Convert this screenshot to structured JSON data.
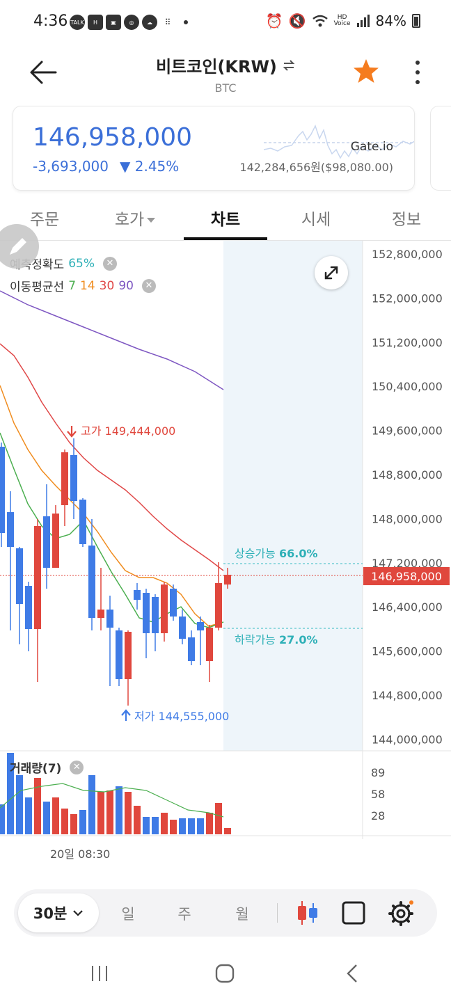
{
  "status_bar": {
    "time": "4:36",
    "battery": "84%",
    "left_icons": [
      "talk-icon",
      "h-icon",
      "gallery-icon",
      "circle-icon",
      "cloud-icon",
      "grid-icon"
    ],
    "right_icons": [
      "alarm-icon",
      "mute-icon",
      "wifi-icon",
      "hd-voice-icon",
      "signal-icon",
      "battery-icon"
    ]
  },
  "header": {
    "title": "비트코인(KRW)",
    "subtitle": "BTC"
  },
  "price_card": {
    "price": "146,958,000",
    "change": "-3,693,000",
    "change_pct": "▼ 2.45%",
    "exchange": "Gate.io",
    "exchange_price": "142,284,656원($98,080.00)"
  },
  "tabs": [
    {
      "label": "주문"
    },
    {
      "label": "호가"
    },
    {
      "label": "차트"
    },
    {
      "label": "시세"
    },
    {
      "label": "정보"
    }
  ],
  "chart": {
    "accuracy_label": "예측정확도",
    "accuracy_value": "65%",
    "ma_label": "이동평균선",
    "ma_periods": [
      "7",
      "14",
      "30",
      "90"
    ],
    "ma_colors": [
      "#4caf50",
      "#f08c1e",
      "#e04848",
      "#7e57c2"
    ],
    "y_ticks": [
      "152,800,000",
      "152,000,000",
      "151,200,000",
      "150,400,000",
      "149,600,000",
      "148,800,000",
      "148,000,000",
      "147,200,000",
      "146,400,000",
      "145,600,000",
      "144,800,000",
      "144,000,000"
    ],
    "current_price": "146,958,000",
    "high_label": "고가 149,444,000",
    "low_label": "저가 144,555,000",
    "up_label": "상승가능",
    "up_value": "66.0%",
    "down_label": "하락가능",
    "down_value": "27.0%",
    "volume_label": "거래량(7)",
    "volume_ticks": [
      "89",
      "58",
      "28"
    ],
    "x_label": "20일 08:30",
    "up_color": "#e0473d",
    "down_color": "#3f7be6"
  },
  "toolbar": {
    "interval": "30분",
    "items": [
      "일",
      "주",
      "월"
    ]
  }
}
